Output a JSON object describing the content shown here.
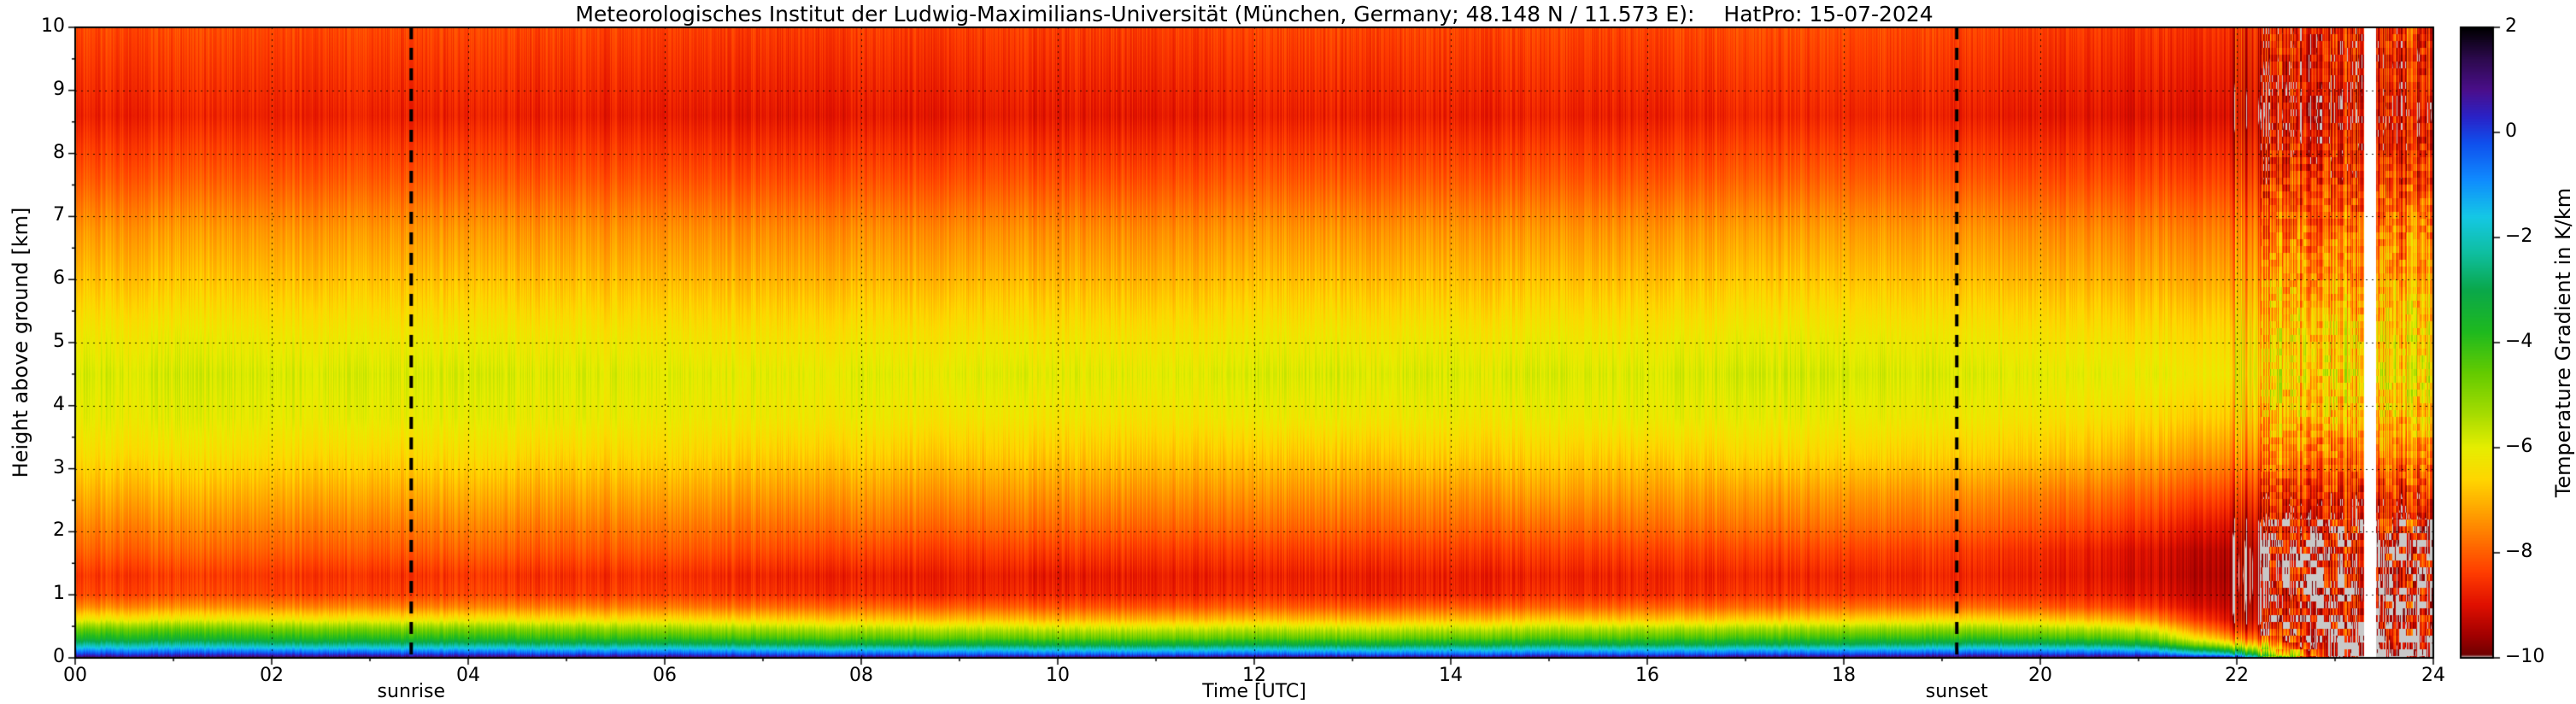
{
  "page": {
    "background": "#ffffff"
  },
  "chart_data": {
    "type": "heatmap",
    "title_institute": "Meteorologisches Institut der Ludwig-Maximilians-Universität (München, Germany; 48.148 N / 11.573 E):",
    "title_instrument": "HatPro: 15-07-2024",
    "xlabel": "Time [UTC]",
    "ylabel": "Height above ground [km]",
    "value_units": "K/km",
    "x_range": [
      0,
      24
    ],
    "y_range": [
      0,
      10
    ],
    "grid": "dotted",
    "x_tick_values": [
      0,
      2,
      4,
      6,
      8,
      10,
      12,
      14,
      16,
      18,
      20,
      22,
      24
    ],
    "x_tick_labels": [
      "00",
      "02",
      "04",
      "06",
      "08",
      "10",
      "12",
      "14",
      "16",
      "18",
      "20",
      "22",
      "24"
    ],
    "y_tick_values": [
      0,
      1,
      2,
      3,
      4,
      5,
      6,
      7,
      8,
      9,
      10
    ],
    "y_tick_labels": [
      "0",
      "1",
      "2",
      "3",
      "4",
      "5",
      "6",
      "7",
      "8",
      "9",
      "10"
    ],
    "colorbar": {
      "label": "Temperature Gradient in K/km",
      "range_top_to_bottom": [
        2,
        -10
      ],
      "tick_values": [
        2,
        0,
        -2,
        -4,
        -6,
        -8,
        -10
      ],
      "tick_labels": [
        "2",
        "0",
        "−2",
        "−4",
        "−6",
        "−8",
        "−10"
      ],
      "stops": [
        [
          2.0,
          "#000000"
        ],
        [
          1.4,
          "#2d0a4e"
        ],
        [
          0.8,
          "#4b0f8c"
        ],
        [
          0.3,
          "#2a23c8"
        ],
        [
          -0.2,
          "#1050ee"
        ],
        [
          -0.9,
          "#0f8cff"
        ],
        [
          -1.6,
          "#15c8e6"
        ],
        [
          -2.3,
          "#0fbfa0"
        ],
        [
          -3.0,
          "#0aa84b"
        ],
        [
          -3.8,
          "#1fba1f"
        ],
        [
          -4.6,
          "#66cc00"
        ],
        [
          -5.4,
          "#aadd00"
        ],
        [
          -6.0,
          "#e6ee00"
        ],
        [
          -6.6,
          "#ffd700"
        ],
        [
          -7.2,
          "#ffa500"
        ],
        [
          -7.8,
          "#ff7000"
        ],
        [
          -8.4,
          "#ff3c00"
        ],
        [
          -9.0,
          "#e01000"
        ],
        [
          -9.6,
          "#a00000"
        ],
        [
          -9.95,
          "#700000"
        ],
        [
          -10.0,
          "#c8c8c8"
        ]
      ]
    },
    "sun_lines": {
      "sunrise": {
        "time": 3.42,
        "label": "sunrise"
      },
      "sunset": {
        "time": 19.15,
        "label": "sunset"
      }
    },
    "data_gap_time_utc": [
      23.3,
      23.42
    ],
    "x": [
      0,
      1,
      2,
      3,
      4,
      5,
      6,
      7,
      8,
      9,
      10,
      11,
      12,
      13,
      14,
      15,
      16,
      17,
      18,
      19,
      20,
      21,
      22,
      23,
      24
    ],
    "y_heights_km": [
      0.0,
      0.05,
      0.12,
      0.2,
      0.3,
      0.45,
      0.6,
      0.8,
      1.0,
      1.3,
      1.7,
      2.1,
      2.6,
      3.2,
      3.8,
      4.5,
      5.2,
      6.0,
      6.8,
      7.6,
      8.6,
      10.0
    ],
    "values_K_per_km": [
      [
        1.2,
        1.2,
        1.3,
        1.3,
        1.2,
        1.2,
        1.1,
        1.0,
        1.0,
        0.9,
        1.0,
        1.0,
        1.1,
        1.0,
        1.0,
        1.1,
        1.1,
        1.2,
        1.2,
        1.3,
        1.3,
        1.2,
        0.5,
        -10.4,
        -10.4
      ],
      [
        0.0,
        0.1,
        0.1,
        0.0,
        0.0,
        -0.1,
        -0.1,
        -0.2,
        -0.3,
        -0.4,
        -0.4,
        -0.4,
        -0.3,
        -0.4,
        -0.4,
        -0.3,
        -0.3,
        -0.2,
        -0.1,
        0.0,
        0.0,
        -0.1,
        -2.0,
        -10.4,
        -10.3
      ],
      [
        -1.1,
        -1.0,
        -1.1,
        -1.2,
        -1.2,
        -1.3,
        -1.3,
        -1.4,
        -1.5,
        -1.6,
        -1.7,
        -1.7,
        -1.6,
        -1.7,
        -1.6,
        -1.6,
        -1.5,
        -1.4,
        -1.3,
        -1.2,
        -1.2,
        -1.4,
        -4.0,
        -10.2,
        -10.2
      ],
      [
        -2.3,
        -2.2,
        -2.4,
        -2.5,
        -2.5,
        -2.6,
        -2.7,
        -2.8,
        -3.0,
        -3.1,
        -3.2,
        -3.2,
        -3.1,
        -3.2,
        -3.1,
        -3.0,
        -3.0,
        -2.9,
        -2.8,
        -2.6,
        -2.6,
        -3.0,
        -6.0,
        -10.1,
        -10.0
      ],
      [
        -3.6,
        -3.5,
        -3.7,
        -3.8,
        -3.8,
        -3.9,
        -4.0,
        -4.1,
        -4.3,
        -4.4,
        -4.5,
        -4.5,
        -4.4,
        -4.5,
        -4.4,
        -4.3,
        -4.2,
        -4.1,
        -4.0,
        -3.9,
        -4.0,
        -4.4,
        -7.5,
        -9.9,
        -9.8
      ],
      [
        -4.7,
        -4.6,
        -4.8,
        -4.9,
        -4.9,
        -5.0,
        -5.2,
        -5.3,
        -5.5,
        -5.6,
        -5.7,
        -5.7,
        -5.6,
        -5.7,
        -5.6,
        -5.5,
        -5.4,
        -5.3,
        -5.2,
        -5.1,
        -5.3,
        -5.8,
        -8.6,
        -9.7,
        -9.6
      ],
      [
        -6.2,
        -6.1,
        -6.2,
        -6.3,
        -6.3,
        -6.4,
        -6.5,
        -6.6,
        -6.8,
        -6.9,
        -7.0,
        -7.0,
        -6.9,
        -7.0,
        -6.9,
        -6.8,
        -6.8,
        -6.7,
        -6.6,
        -6.5,
        -6.7,
        -7.2,
        -9.2,
        -9.6,
        -9.5
      ],
      [
        -7.5,
        -7.4,
        -7.5,
        -7.6,
        -7.6,
        -7.6,
        -7.7,
        -7.8,
        -7.9,
        -8.0,
        -8.1,
        -8.1,
        -8.0,
        -8.1,
        -8.0,
        -8.0,
        -7.9,
        -7.9,
        -7.8,
        -7.8,
        -8.0,
        -8.4,
        -9.4,
        -9.6,
        -9.5
      ],
      [
        -8.3,
        -8.2,
        -8.3,
        -8.4,
        -8.3,
        -8.4,
        -8.4,
        -8.5,
        -8.6,
        -8.7,
        -8.7,
        -8.7,
        -8.6,
        -8.7,
        -8.7,
        -8.6,
        -8.6,
        -8.5,
        -8.5,
        -8.5,
        -8.6,
        -8.9,
        -9.5,
        -9.7,
        -9.6
      ],
      [
        -8.5,
        -8.4,
        -8.5,
        -8.6,
        -8.5,
        -8.6,
        -8.6,
        -8.7,
        -8.8,
        -8.8,
        -8.9,
        -8.8,
        -8.8,
        -8.8,
        -8.8,
        -8.8,
        -8.7,
        -8.7,
        -8.7,
        -8.7,
        -8.8,
        -9.1,
        -9.6,
        -9.7,
        -9.6
      ],
      [
        -8.0,
        -7.9,
        -8.0,
        -8.1,
        -8.0,
        -8.1,
        -8.1,
        -8.2,
        -8.3,
        -8.4,
        -8.4,
        -8.4,
        -8.4,
        -8.4,
        -8.4,
        -8.4,
        -8.3,
        -8.3,
        -8.3,
        -8.4,
        -8.6,
        -9.0,
        -9.5,
        -9.6,
        -9.5
      ],
      [
        -7.6,
        -7.5,
        -7.6,
        -7.7,
        -7.6,
        -7.7,
        -7.7,
        -7.8,
        -7.8,
        -7.9,
        -7.9,
        -7.9,
        -7.9,
        -7.9,
        -7.9,
        -7.9,
        -7.8,
        -7.8,
        -7.8,
        -7.9,
        -8.1,
        -8.5,
        -9.1,
        -9.3,
        -9.2
      ],
      [
        -7.1,
        -7.0,
        -7.1,
        -7.2,
        -7.1,
        -7.2,
        -7.2,
        -7.3,
        -7.3,
        -7.4,
        -7.4,
        -7.4,
        -7.4,
        -7.4,
        -7.4,
        -7.3,
        -7.3,
        -7.3,
        -7.3,
        -7.4,
        -7.6,
        -7.9,
        -8.4,
        -8.6,
        -8.5
      ],
      [
        -6.5,
        -6.4,
        -6.5,
        -6.6,
        -6.5,
        -6.6,
        -6.6,
        -6.7,
        -6.7,
        -6.8,
        -6.8,
        -6.8,
        -6.8,
        -6.8,
        -6.7,
        -6.7,
        -6.7,
        -6.6,
        -6.6,
        -6.7,
        -6.8,
        -7.1,
        -7.5,
        -7.7,
        -7.6
      ],
      [
        -6.1,
        -6.0,
        -6.1,
        -6.1,
        -6.1,
        -6.1,
        -6.2,
        -6.2,
        -6.2,
        -6.3,
        -6.3,
        -6.3,
        -6.2,
        -6.2,
        -6.2,
        -6.2,
        -6.1,
        -6.1,
        -6.1,
        -6.2,
        -6.3,
        -6.5,
        -6.8,
        -6.9,
        -6.8
      ],
      [
        -5.9,
        -5.8,
        -5.9,
        -5.9,
        -5.9,
        -5.9,
        -6.0,
        -6.0,
        -6.0,
        -6.0,
        -6.0,
        -6.0,
        -5.9,
        -5.9,
        -5.9,
        -5.9,
        -5.9,
        -5.8,
        -5.8,
        -5.9,
        -6.0,
        -6.1,
        -6.3,
        -6.4,
        -6.3
      ],
      [
        -6.3,
        -6.2,
        -6.3,
        -6.3,
        -6.3,
        -6.3,
        -6.4,
        -6.4,
        -6.4,
        -6.4,
        -6.4,
        -6.4,
        -6.3,
        -6.3,
        -6.3,
        -6.3,
        -6.3,
        -6.2,
        -6.2,
        -6.3,
        -6.4,
        -6.5,
        -6.6,
        -6.7,
        -6.6
      ],
      [
        -6.9,
        -6.8,
        -6.9,
        -6.9,
        -6.9,
        -6.9,
        -7.0,
        -7.0,
        -7.0,
        -7.0,
        -7.0,
        -7.0,
        -6.9,
        -6.9,
        -6.9,
        -6.9,
        -6.9,
        -6.8,
        -6.8,
        -6.9,
        -7.0,
        -7.1,
        -7.2,
        -7.3,
        -7.2
      ],
      [
        -7.4,
        -7.3,
        -7.4,
        -7.4,
        -7.4,
        -7.4,
        -7.5,
        -7.5,
        -7.5,
        -7.5,
        -7.5,
        -7.5,
        -7.4,
        -7.4,
        -7.4,
        -7.4,
        -7.4,
        -7.3,
        -7.3,
        -7.4,
        -7.5,
        -7.6,
        -7.7,
        -7.8,
        -7.7
      ],
      [
        -8.1,
        -8.0,
        -8.1,
        -8.1,
        -8.1,
        -8.1,
        -8.2,
        -8.2,
        -8.2,
        -8.2,
        -8.2,
        -8.2,
        -8.1,
        -8.1,
        -8.1,
        -8.1,
        -8.1,
        -8.0,
        -8.0,
        -8.1,
        -8.2,
        -8.3,
        -8.4,
        -8.5,
        -8.4
      ],
      [
        -8.8,
        -8.7,
        -8.8,
        -8.8,
        -8.8,
        -8.8,
        -8.9,
        -8.9,
        -8.9,
        -8.9,
        -8.9,
        -8.9,
        -8.8,
        -8.8,
        -8.8,
        -8.8,
        -8.8,
        -8.7,
        -8.7,
        -8.8,
        -8.9,
        -9.0,
        -9.1,
        -9.2,
        -9.1
      ],
      [
        -8.3,
        -8.2,
        -8.3,
        -8.3,
        -8.3,
        -8.3,
        -8.4,
        -8.4,
        -8.4,
        -8.4,
        -8.4,
        -8.4,
        -8.3,
        -8.3,
        -8.3,
        -8.3,
        -8.3,
        -8.2,
        -8.2,
        -8.3,
        -8.4,
        -8.5,
        -8.6,
        -8.7,
        -8.6
      ]
    ]
  }
}
